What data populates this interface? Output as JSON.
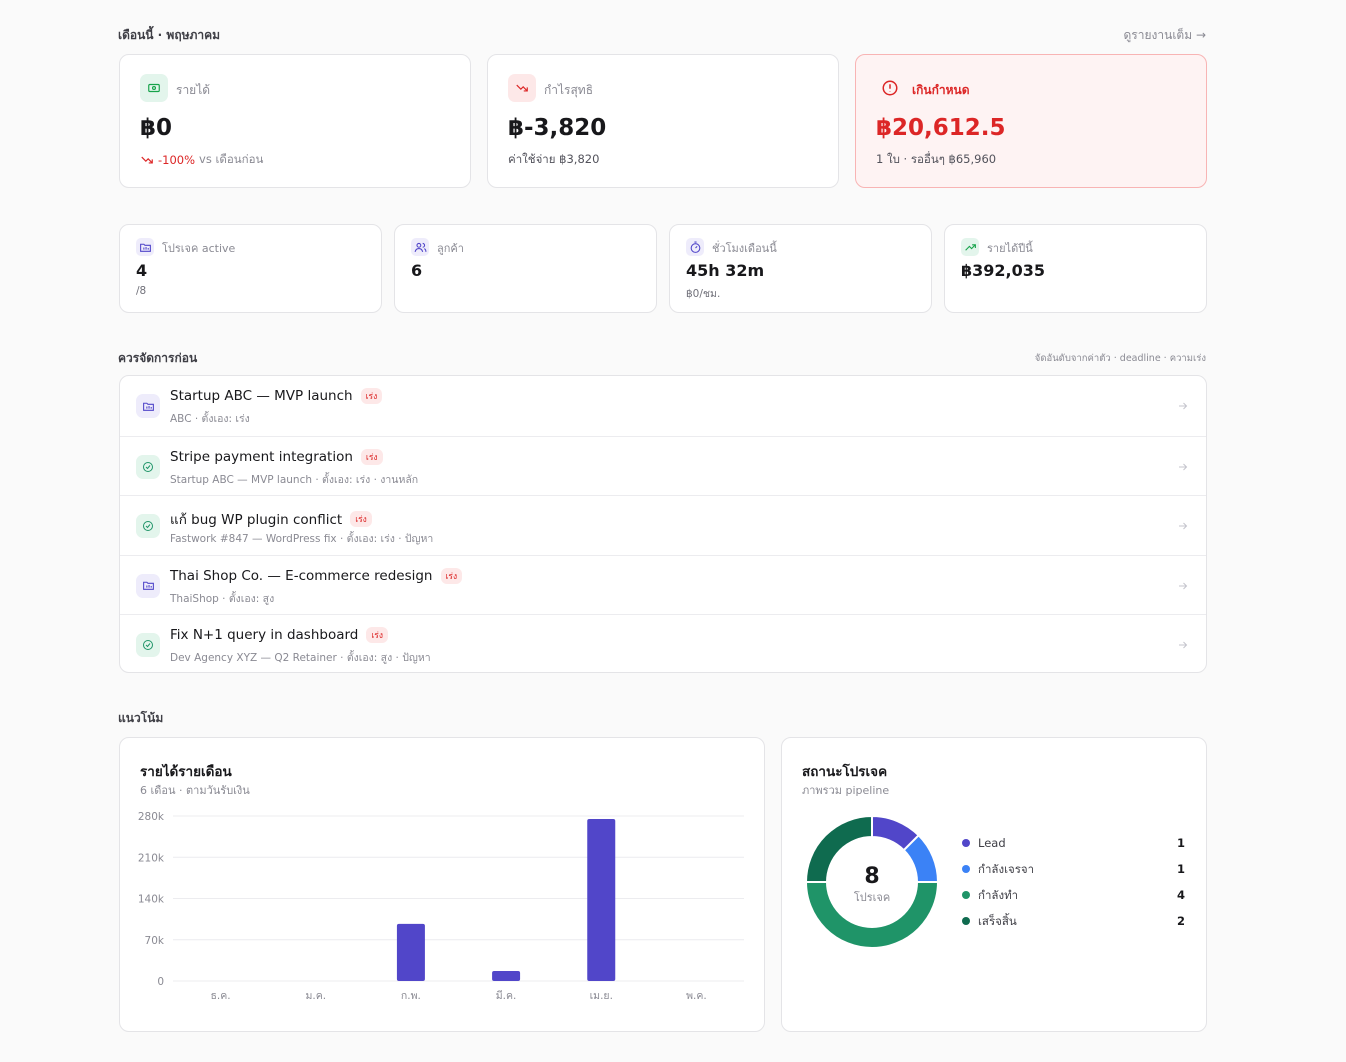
{
  "header": {
    "title": "เดือนนี้ · พฤษภาคม",
    "link": "ดูรายงานเต็ม →"
  },
  "kpis": [
    {
      "label": "รายได้",
      "value": "฿0",
      "change": "-100%",
      "change_note": "vs เดือนก่อน"
    },
    {
      "label": "กำไรสุทธิ",
      "value": "฿-3,820",
      "note": "ค่าใช้จ่าย ฿3,820"
    },
    {
      "label": "เกินกำหนด",
      "value": "฿20,612.5",
      "note": "1 ใบ · รออื่นๆ ฿65,960"
    }
  ],
  "stats": [
    {
      "label": "โปรเจค active",
      "value": "4",
      "note": "/8"
    },
    {
      "label": "ลูกค้า",
      "value": "6"
    },
    {
      "label": "ชั่วโมงเดือนนี้",
      "value": "45h 32m",
      "note": "฿0/ชม."
    },
    {
      "label": "รายได้ปีนี้",
      "value": "฿392,035"
    }
  ],
  "priority": {
    "title": "ควรจัดการก่อน",
    "sort_note": "จัดอันดับจากค่าตัว · deadline · ความเร่ง",
    "items": [
      {
        "title": "Startup ABC — MVP launch",
        "badge": "เร่ง",
        "subtitle": "ABC · ตั้งเอง: เร่ง"
      },
      {
        "title": "Stripe payment integration",
        "badge": "เร่ง",
        "subtitle": "Startup ABC — MVP launch · ตั้งเอง: เร่ง · งานหลัก"
      },
      {
        "title": "แก้ bug WP plugin conflict",
        "badge": "เร่ง",
        "subtitle": "Fastwork #847 — WordPress fix · ตั้งเอง: เร่ง · ปัญหา"
      },
      {
        "title": "Thai Shop Co. — E-commerce redesign",
        "badge": "เร่ง",
        "subtitle": "ThaiShop · ตั้งเอง: สูง"
      },
      {
        "title": "Fix N+1 query in dashboard",
        "badge": "เร่ง",
        "subtitle": "Dev Agency XYZ — Q2 Retainer · ตั้งเอง: สูง · ปัญหา"
      }
    ]
  },
  "trends": {
    "title": "แนวโน้ม",
    "revenue_chart": {
      "type": "bar",
      "title": "รายได้รายเดือน",
      "subtitle": "6 เดือน · ตามวันรับเงิน",
      "categories": [
        "ธ.ค.",
        "ม.ค.",
        "ก.พ.",
        "มี.ค.",
        "เม.ย.",
        "พ.ค."
      ],
      "values": [
        0,
        0,
        97000,
        17000,
        275000,
        0
      ],
      "color": "#5146c9",
      "ylim": [
        0,
        280000
      ],
      "yticks": [
        0,
        {
          "value": 70000,
          "label": "70k"
        },
        {
          "value": 140000,
          "label": "140k"
        },
        {
          "value": 210000,
          "label": "210k"
        },
        {
          "value": 280000,
          "label": "280k"
        }
      ],
      "grid": true
    },
    "status_chart": {
      "type": "donut",
      "title": "สถานะโปรเจค",
      "subtitle": "ภาพรวม pipeline",
      "total": 8,
      "total_label": "โปรเจค",
      "categories": [
        "Lead",
        "กำลังเจรจา",
        "กำลังทำ",
        "เสร็จสิ้น"
      ],
      "values": [
        1,
        1,
        4,
        2
      ],
      "colors": [
        "#5146c9",
        "#3b82f6",
        "#1f9468",
        "#0f6b4f"
      ]
    }
  }
}
